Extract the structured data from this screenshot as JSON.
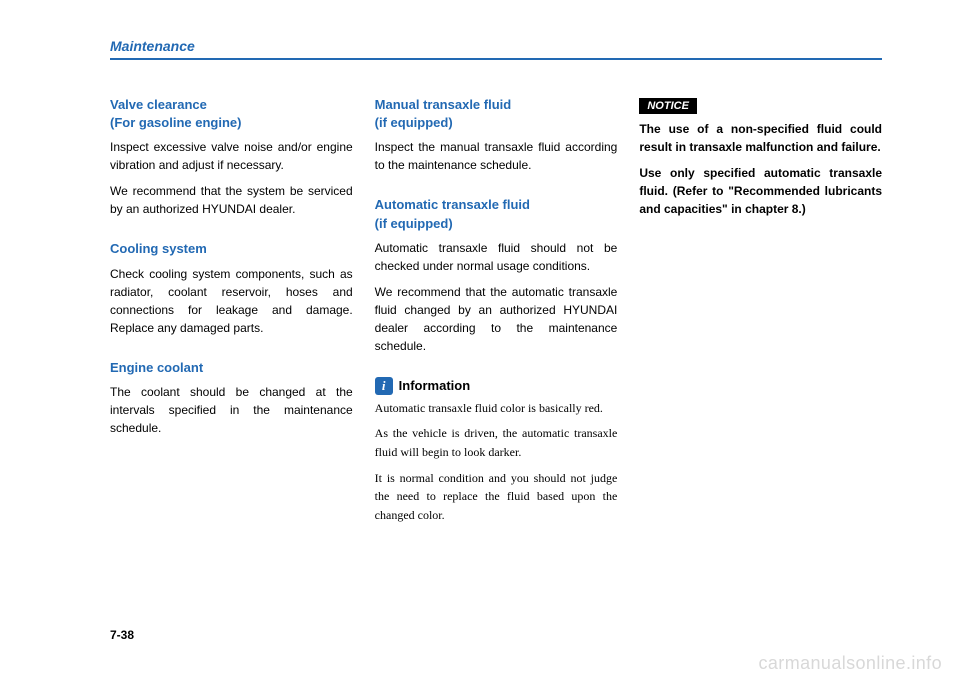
{
  "header": {
    "title": "Maintenance"
  },
  "col1": {
    "s1": {
      "heading_l1": "Valve clearance",
      "heading_l2": "(For gasoline engine)",
      "p1": "Inspect excessive valve noise and/or engine vibration and adjust if necessary.",
      "p2": "We recommend that the system be serviced by an authorized HYUNDAI dealer."
    },
    "s2": {
      "heading": "Cooling system",
      "p1": "Check cooling system components, such as radiator, coolant reservoir, hoses and connections for leakage and damage. Replace any damaged parts."
    },
    "s3": {
      "heading": "Engine coolant",
      "p1": "The coolant should be changed at the intervals specified in the maintenance schedule."
    }
  },
  "col2": {
    "s1": {
      "heading_l1": "Manual transaxle fluid",
      "heading_l2": "(if equipped)",
      "p1": "Inspect the manual transaxle fluid according to the maintenance schedule."
    },
    "s2": {
      "heading_l1": "Automatic transaxle fluid",
      "heading_l2": "(if equipped)",
      "p1": "Automatic transaxle fluid should not be checked under normal usage conditions.",
      "p2": "We recommend that the automatic transaxle fluid changed by an authorized HYUNDAI dealer according to the maintenance schedule."
    },
    "info": {
      "icon": "i",
      "label": "Information",
      "p1": "Automatic transaxle fluid color is basically red.",
      "p2": "As the vehicle is driven, the automatic transaxle fluid will begin to look darker.",
      "p3": "It is normal condition and you should not judge the need to replace the fluid based upon the changed color."
    }
  },
  "col3": {
    "notice": {
      "label": "NOTICE",
      "p1": "The use of a non-specified fluid could result in transaxle malfunction and failure.",
      "p2": "Use only specified automatic transaxle fluid. (Refer to \"Recommended lubricants and capacities\" in chapter 8.)"
    }
  },
  "page_number": "7-38",
  "watermark": "carmanualsonline.info"
}
